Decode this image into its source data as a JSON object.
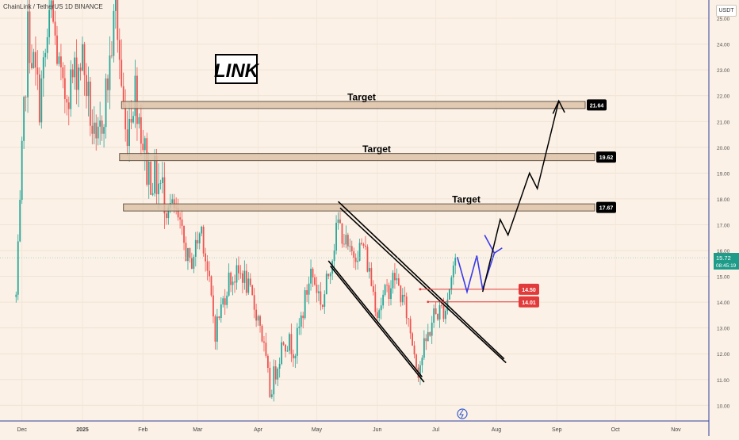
{
  "header": {
    "symbol": "ChainLink / TetherUS  1D  BINANCE",
    "currency": "USDT"
  },
  "chart_data": {
    "type": "candlestick",
    "title": "LINK",
    "x_ticks": [
      "Dec",
      "2025",
      "Feb",
      "Mar",
      "Apr",
      "May",
      "Jun",
      "Jul",
      "Aug",
      "Sep",
      "Oct",
      "Nov"
    ],
    "y_ticks": [
      10,
      11,
      12,
      13,
      14,
      15,
      16,
      17,
      18,
      19,
      20,
      21,
      22,
      23,
      24,
      25
    ],
    "ylim": [
      9.6,
      25.2
    ],
    "current_price": "15.72",
    "countdown": "08:45:19",
    "targets": [
      {
        "label": "Target",
        "value": "21.64"
      },
      {
        "label": "Target",
        "value": "19.62"
      },
      {
        "label": "Target",
        "value": "17.67"
      }
    ],
    "support_levels": [
      "14.50",
      "14.01"
    ],
    "path_key": [
      {
        "date": "2025-01-18",
        "price": 25.4
      },
      {
        "date": "2025-01-23",
        "price": 20.5
      },
      {
        "date": "2025-01-28",
        "price": 22.3
      },
      {
        "date": "2025-02-03",
        "price": 19.2
      },
      {
        "date": "2025-02-08",
        "price": 18.7
      },
      {
        "date": "2025-02-18",
        "price": 17.4
      },
      {
        "date": "2025-02-25",
        "price": 15.4
      },
      {
        "date": "2025-03-03",
        "price": 16.9
      },
      {
        "date": "2025-03-10",
        "price": 12.9
      },
      {
        "date": "2025-03-17",
        "price": 14.9
      },
      {
        "date": "2025-03-24",
        "price": 15.1
      },
      {
        "date": "2025-04-02",
        "price": 13.2
      },
      {
        "date": "2025-04-07",
        "price": 10.5
      },
      {
        "date": "2025-04-14",
        "price": 12.6
      },
      {
        "date": "2025-04-20",
        "price": 12.2
      },
      {
        "date": "2025-04-28",
        "price": 15.2
      },
      {
        "date": "2025-05-04",
        "price": 13.9
      },
      {
        "date": "2025-05-12",
        "price": 17.1
      },
      {
        "date": "2025-05-18",
        "price": 15.8
      },
      {
        "date": "2025-05-25",
        "price": 16.2
      },
      {
        "date": "2025-06-01",
        "price": 13.7
      },
      {
        "date": "2025-06-10",
        "price": 15.0
      },
      {
        "date": "2025-06-16",
        "price": 13.6
      },
      {
        "date": "2025-06-22",
        "price": 11.4
      },
      {
        "date": "2025-06-30",
        "price": 13.5
      },
      {
        "date": "2025-07-06",
        "price": 13.8
      },
      {
        "date": "2025-07-11",
        "price": 15.8
      }
    ],
    "colors": {
      "up": "#26a69a",
      "down": "#ef5350",
      "target_box": "#dcc2a8",
      "support": "#e23a3a",
      "projection": "#000000",
      "blue_path": "#3a3aea"
    }
  }
}
